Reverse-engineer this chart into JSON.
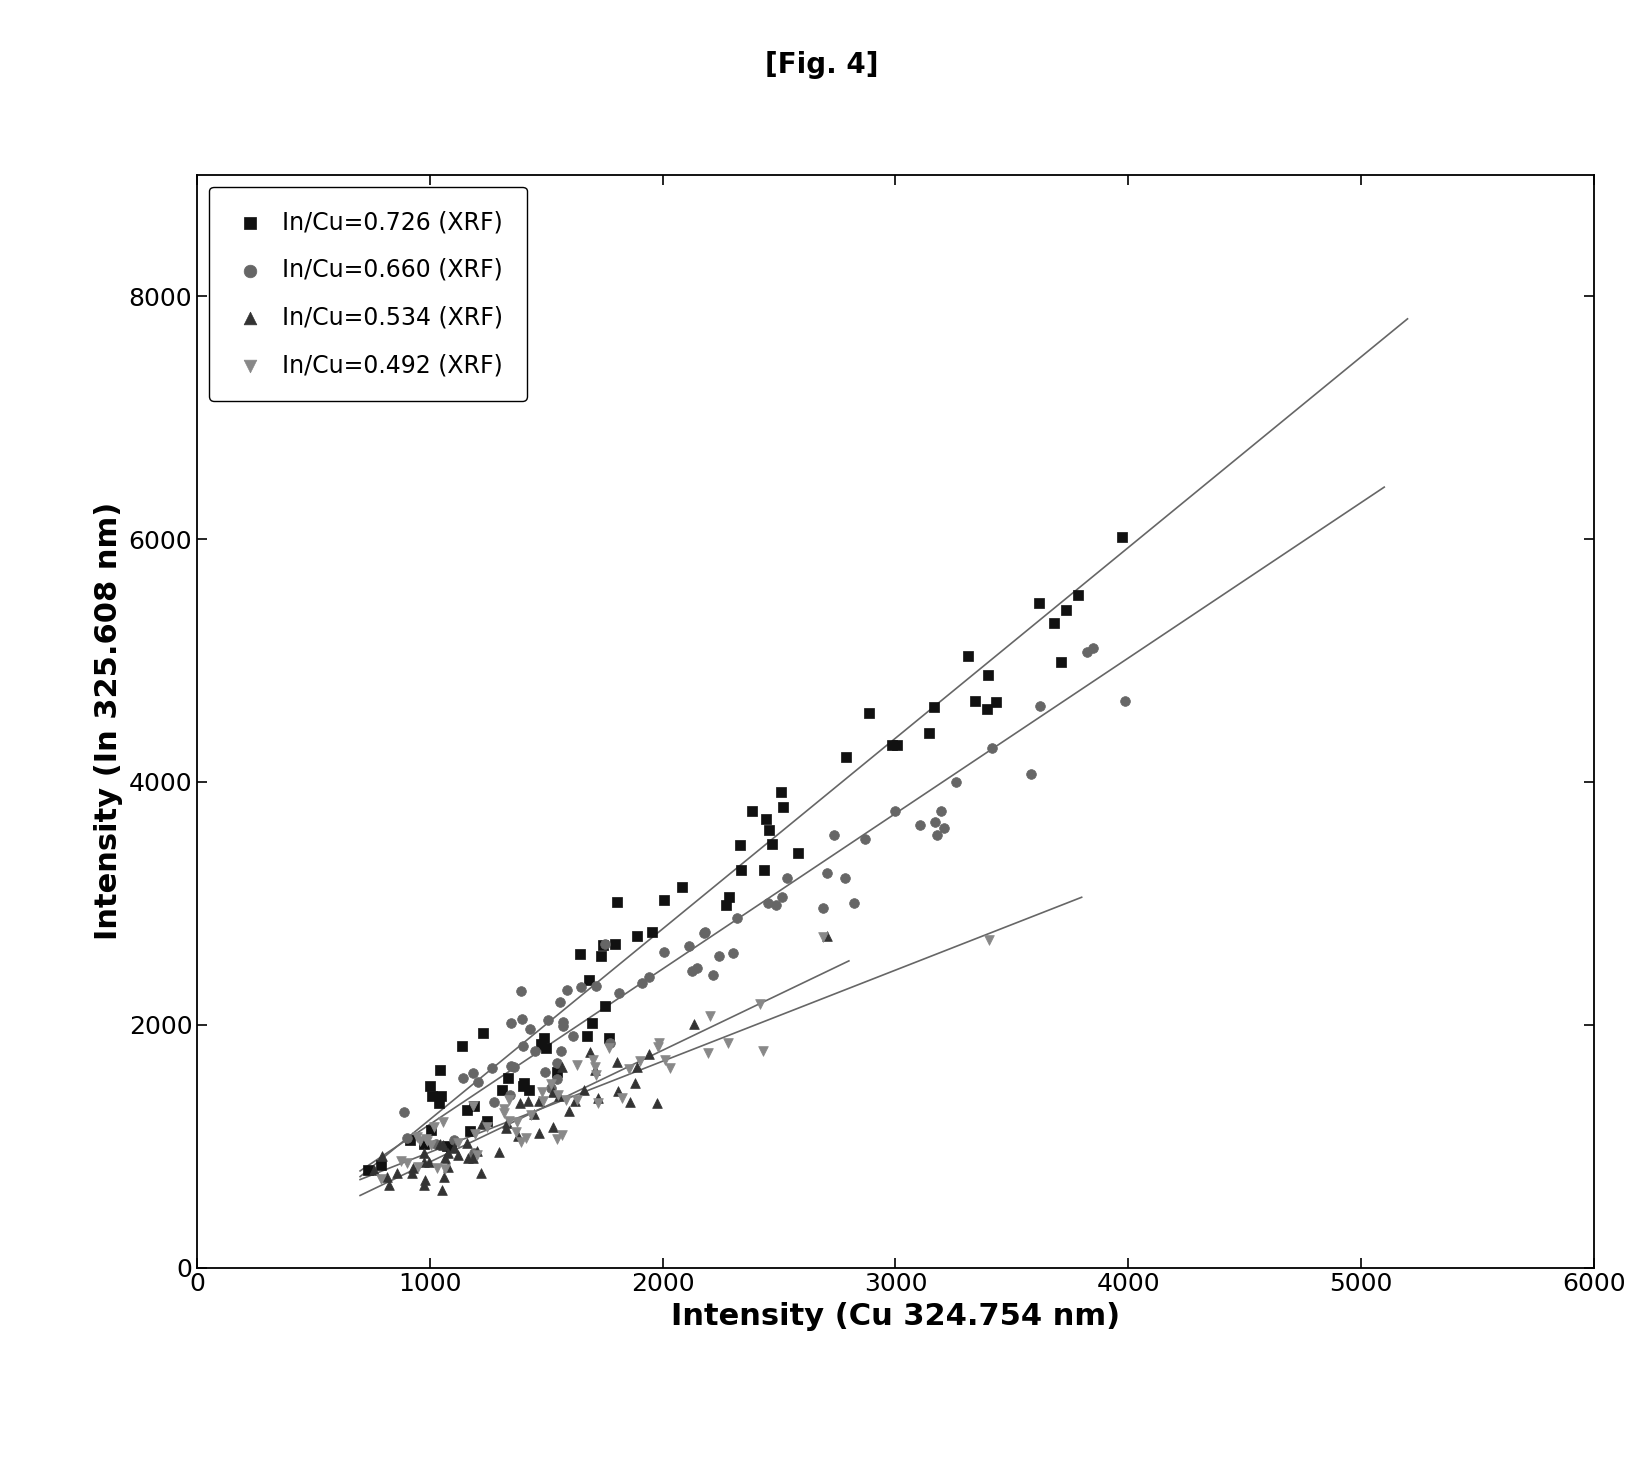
{
  "title": "[Fig. 4]",
  "xlabel": "Intensity (Cu 324.754 nm)",
  "ylabel": "Intensity (In 325.608 nm)",
  "xlim": [
    0,
    6000
  ],
  "ylim": [
    0,
    9000
  ],
  "xticks": [
    0,
    1000,
    2000,
    3000,
    4000,
    5000,
    6000
  ],
  "yticks": [
    0,
    2000,
    4000,
    6000,
    8000
  ],
  "series": [
    {
      "label": "In/Cu=0.726 (XRF)",
      "marker": "s",
      "color": "#111111",
      "markersize": 7,
      "slope": 1.57,
      "intercept": -350,
      "x_min": 700,
      "x_max": 5200,
      "n_points": 70,
      "noise_scale": 280,
      "x_concentration": 0.6
    },
    {
      "label": "In/Cu=0.660 (XRF)",
      "marker": "o",
      "color": "#666666",
      "markersize": 7,
      "slope": 1.28,
      "intercept": -100,
      "x_min": 700,
      "x_max": 5100,
      "n_points": 70,
      "noise_scale": 250,
      "x_concentration": 0.6
    },
    {
      "label": "In/Cu=0.534 (XRF)",
      "marker": "^",
      "color": "#333333",
      "markersize": 7,
      "slope": 0.92,
      "intercept": -50,
      "x_min": 700,
      "x_max": 2800,
      "n_points": 55,
      "noise_scale": 170,
      "x_concentration": 0.7
    },
    {
      "label": "In/Cu=0.492 (XRF)",
      "marker": "v",
      "color": "#888888",
      "markersize": 7,
      "slope": 0.75,
      "intercept": 200,
      "x_min": 700,
      "x_max": 3800,
      "n_points": 55,
      "noise_scale": 160,
      "x_concentration": 0.65
    }
  ],
  "line_color": "#666666",
  "background_color": "#ffffff",
  "fig_title_fontsize": 20,
  "axis_label_fontsize": 22,
  "tick_fontsize": 18,
  "legend_fontsize": 17
}
